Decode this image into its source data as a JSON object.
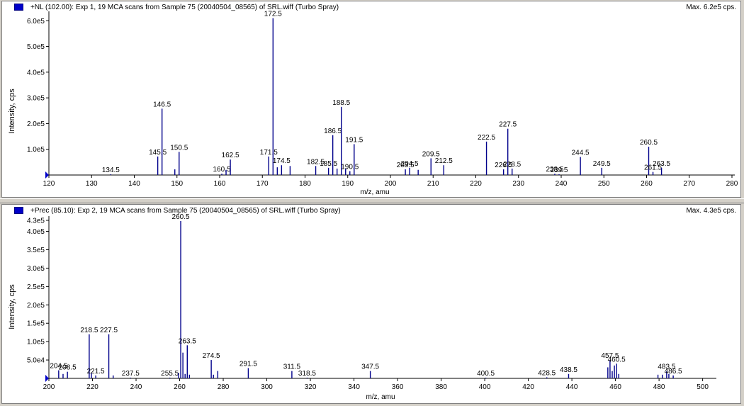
{
  "panels": [
    {
      "title": "+NL (102.00): Exp 1, 19 MCA scans from Sample 75 (20040504_08565) of SRL.wiff (Turbo Spray)",
      "max": "Max. 6.2e5 cps.",
      "xlabel": "m/z, amu",
      "ylabel": "Intensity, cps",
      "xticks": [
        "120",
        "130",
        "140",
        "150",
        "160",
        "170",
        "180",
        "190",
        "200",
        "210",
        "220",
        "230",
        "240",
        "250",
        "260",
        "270",
        "280"
      ],
      "yticks": [
        "1.0e5",
        "2.0e5",
        "3.0e5",
        "4.0e5",
        "5.0e5",
        "6.0e5"
      ]
    },
    {
      "title": "+Prec (85.10): Exp 2, 19 MCA scans from Sample 75 (20040504_08565) of SRL.wiff (Turbo Spray)",
      "max": "Max. 4.3e5 cps.",
      "xlabel": "m/z, amu",
      "ylabel": "Intensity, cps",
      "xticks": [
        "200",
        "220",
        "240",
        "260",
        "280",
        "300",
        "320",
        "340",
        "360",
        "380",
        "400",
        "420",
        "440",
        "460",
        "480",
        "500"
      ],
      "yticks": [
        "5.0e4",
        "1.0e5",
        "1.5e5",
        "2.0e5",
        "2.5e5",
        "3.0e5",
        "3.5e5",
        "4.0e5",
        "4.3e5"
      ]
    }
  ],
  "colors": {
    "peak": "#00008b",
    "background": "#ffffff",
    "frame": "#d4d0c8"
  },
  "chart_data": [
    {
      "type": "bar",
      "xlim": [
        120,
        280
      ],
      "ylim": [
        0,
        620000
      ],
      "peaks": [
        {
          "x": 134.5,
          "y": 2000,
          "label": "134.5"
        },
        {
          "x": 145.5,
          "y": 72000,
          "label": "145.5"
        },
        {
          "x": 146.5,
          "y": 258000,
          "label": "146.5"
        },
        {
          "x": 149.5,
          "y": 22000,
          "label": ""
        },
        {
          "x": 150.5,
          "y": 90000,
          "label": "150.5"
        },
        {
          "x": 160.5,
          "y": 5000,
          "label": "160.5"
        },
        {
          "x": 161.5,
          "y": 20000,
          "label": ""
        },
        {
          "x": 162.5,
          "y": 60000,
          "label": "162.5"
        },
        {
          "x": 171.5,
          "y": 72000,
          "label": "171.5"
        },
        {
          "x": 172.5,
          "y": 610000,
          "label": "172.5"
        },
        {
          "x": 173.5,
          "y": 30000,
          "label": ""
        },
        {
          "x": 174.5,
          "y": 38000,
          "label": "174.5"
        },
        {
          "x": 176.5,
          "y": 35000,
          "label": ""
        },
        {
          "x": 182.5,
          "y": 35000,
          "label": "182.5"
        },
        {
          "x": 185.5,
          "y": 28000,
          "label": "185.5"
        },
        {
          "x": 186.5,
          "y": 155000,
          "label": "186.5"
        },
        {
          "x": 187.5,
          "y": 25000,
          "label": ""
        },
        {
          "x": 188.5,
          "y": 265000,
          "label": "188.5"
        },
        {
          "x": 189.5,
          "y": 25000,
          "label": ""
        },
        {
          "x": 190.5,
          "y": 15000,
          "label": "190.5"
        },
        {
          "x": 191.5,
          "y": 120000,
          "label": "191.5"
        },
        {
          "x": 203.5,
          "y": 22000,
          "label": "203.5"
        },
        {
          "x": 204.5,
          "y": 28000,
          "label": "204.5"
        },
        {
          "x": 206.5,
          "y": 20000,
          "label": ""
        },
        {
          "x": 209.5,
          "y": 65000,
          "label": "209.5"
        },
        {
          "x": 212.5,
          "y": 38000,
          "label": "212.5"
        },
        {
          "x": 222.5,
          "y": 130000,
          "label": "222.5"
        },
        {
          "x": 226.5,
          "y": 22000,
          "label": "226.5"
        },
        {
          "x": 227.5,
          "y": 180000,
          "label": "227.5"
        },
        {
          "x": 228.5,
          "y": 25000,
          "label": "228.5"
        },
        {
          "x": 238.5,
          "y": 5000,
          "label": "238.5"
        },
        {
          "x": 239.5,
          "y": 2000,
          "label": "239.5"
        },
        {
          "x": 244.5,
          "y": 70000,
          "label": "244.5"
        },
        {
          "x": 249.5,
          "y": 28000,
          "label": "249.5"
        },
        {
          "x": 260.5,
          "y": 110000,
          "label": "260.5"
        },
        {
          "x": 261.5,
          "y": 12000,
          "label": "261.5"
        },
        {
          "x": 263.5,
          "y": 28000,
          "label": "263.5"
        }
      ]
    },
    {
      "type": "bar",
      "xlim": [
        200,
        505
      ],
      "ylim": [
        0,
        430000
      ],
      "peaks": [
        {
          "x": 204.5,
          "y": 22000,
          "label": "204.5"
        },
        {
          "x": 206.5,
          "y": 12000,
          "label": ""
        },
        {
          "x": 208.5,
          "y": 18000,
          "label": "208.5"
        },
        {
          "x": 218.5,
          "y": 120000,
          "label": "218.5"
        },
        {
          "x": 219.5,
          "y": 15000,
          "label": ""
        },
        {
          "x": 221.5,
          "y": 8000,
          "label": "221.5"
        },
        {
          "x": 227.5,
          "y": 120000,
          "label": "227.5"
        },
        {
          "x": 229.5,
          "y": 8000,
          "label": ""
        },
        {
          "x": 237.5,
          "y": 2000,
          "label": "237.5"
        },
        {
          "x": 255.5,
          "y": 2000,
          "label": "255.5"
        },
        {
          "x": 259.5,
          "y": 15000,
          "label": ""
        },
        {
          "x": 260.5,
          "y": 428000,
          "label": "260.5"
        },
        {
          "x": 261.5,
          "y": 70000,
          "label": ""
        },
        {
          "x": 262.5,
          "y": 12000,
          "label": ""
        },
        {
          "x": 263.5,
          "y": 90000,
          "label": "263.5"
        },
        {
          "x": 264.5,
          "y": 10000,
          "label": ""
        },
        {
          "x": 274.5,
          "y": 50000,
          "label": "274.5"
        },
        {
          "x": 275.5,
          "y": 10000,
          "label": ""
        },
        {
          "x": 277.5,
          "y": 20000,
          "label": ""
        },
        {
          "x": 291.5,
          "y": 28000,
          "label": "291.5"
        },
        {
          "x": 311.5,
          "y": 20000,
          "label": "311.5"
        },
        {
          "x": 318.5,
          "y": 2000,
          "label": "318.5"
        },
        {
          "x": 347.5,
          "y": 20000,
          "label": "347.5"
        },
        {
          "x": 400.5,
          "y": 1000,
          "label": "400.5"
        },
        {
          "x": 428.5,
          "y": 3000,
          "label": "428.5"
        },
        {
          "x": 438.5,
          "y": 12000,
          "label": "438.5"
        },
        {
          "x": 456.5,
          "y": 30000,
          "label": ""
        },
        {
          "x": 457.5,
          "y": 50000,
          "label": "457.5"
        },
        {
          "x": 458.5,
          "y": 20000,
          "label": ""
        },
        {
          "x": 459.5,
          "y": 35000,
          "label": ""
        },
        {
          "x": 460.5,
          "y": 40000,
          "label": "460.5"
        },
        {
          "x": 461.5,
          "y": 12000,
          "label": ""
        },
        {
          "x": 479.5,
          "y": 10000,
          "label": ""
        },
        {
          "x": 481.5,
          "y": 10000,
          "label": ""
        },
        {
          "x": 483.5,
          "y": 20000,
          "label": "483.5"
        },
        {
          "x": 484.5,
          "y": 12000,
          "label": ""
        },
        {
          "x": 486.5,
          "y": 8000,
          "label": "486.5"
        }
      ]
    }
  ]
}
